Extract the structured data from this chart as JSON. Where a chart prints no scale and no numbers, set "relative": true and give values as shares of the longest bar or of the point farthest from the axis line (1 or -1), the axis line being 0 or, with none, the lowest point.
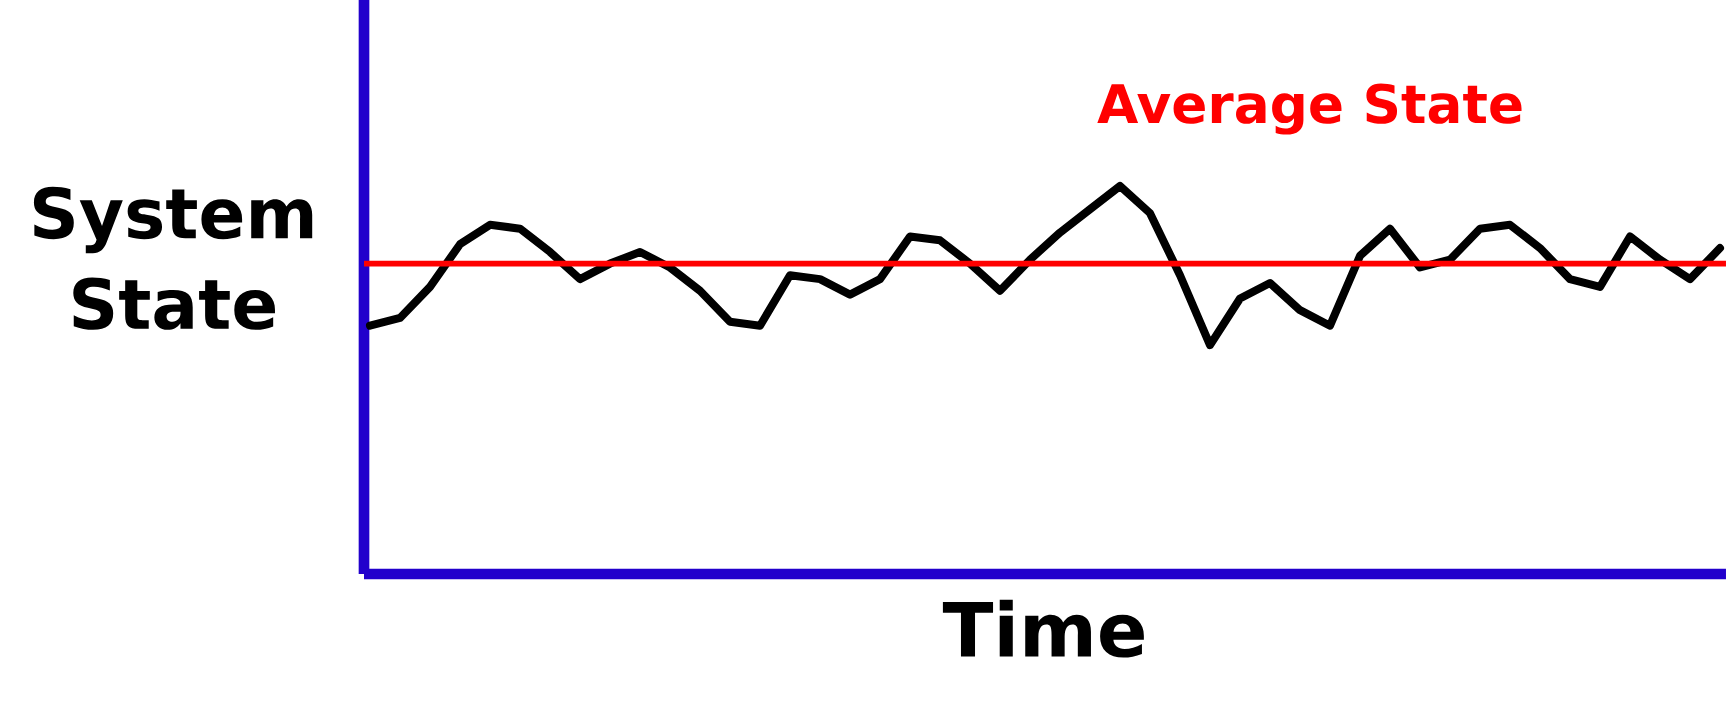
{
  "chart_data": {
    "type": "line",
    "relative": true,
    "xlabel": "Time",
    "ylabel": "System State",
    "categories": [
      null,
      null,
      null,
      null,
      null,
      null,
      null,
      null,
      null,
      null,
      null,
      null,
      null,
      null,
      null,
      null,
      null,
      null,
      null,
      null,
      null,
      null,
      null,
      null,
      null,
      null,
      null,
      null,
      null,
      null,
      null,
      null,
      null,
      null,
      null,
      null,
      null,
      null,
      null,
      null,
      null,
      null,
      null,
      null,
      null,
      null
    ],
    "series": [
      {
        "color": "#000000",
        "values": [
          0.64,
          0.66,
          0.74,
          0.85,
          0.9,
          0.89,
          0.83,
          0.76,
          0.8,
          0.83,
          0.79,
          0.73,
          0.65,
          0.64,
          0.77,
          0.76,
          0.72,
          0.76,
          0.87,
          0.86,
          0.8,
          0.73,
          0.81,
          0.88,
          0.94,
          1,
          0.93,
          0.77,
          0.59,
          0.71,
          0.75,
          0.68,
          0.64,
          0.82,
          0.89,
          0.79,
          0.81,
          0.89,
          0.9,
          0.84,
          0.76,
          0.74,
          0.87,
          0.81,
          0.76,
          0.84
        ]
      }
    ],
    "ref_lines": [
      {
        "axis": "y",
        "value": 0.8,
        "label": "Average State",
        "color": "#ff0000"
      }
    ],
    "marker": "none",
    "line_style": "solid"
  }
}
